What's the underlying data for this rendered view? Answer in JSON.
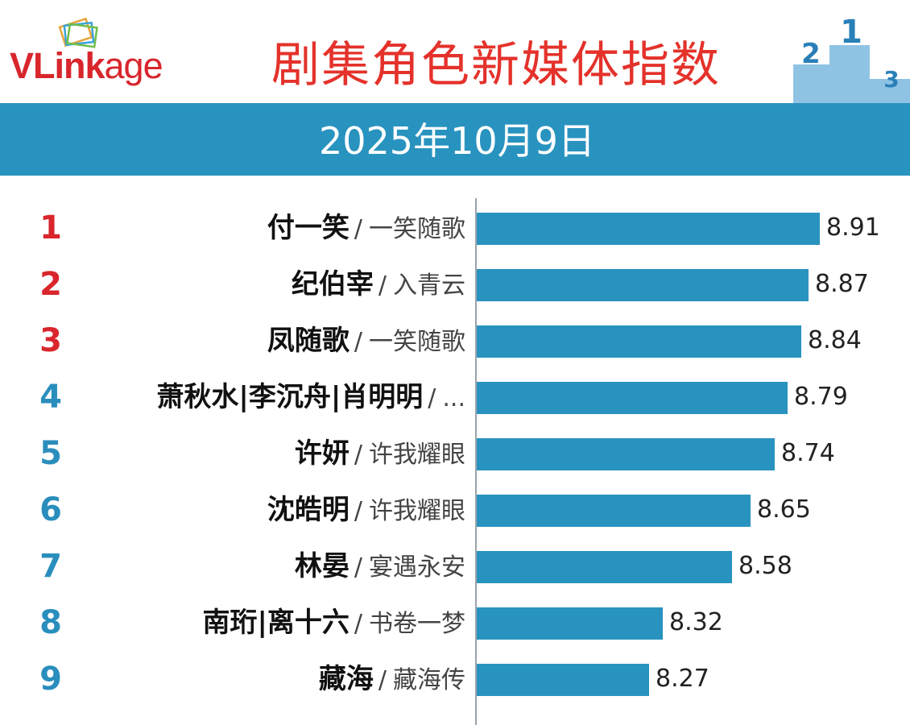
{
  "header": {
    "logo": {
      "v": "V",
      "l": "Link",
      "a": "age"
    },
    "title": "剧集角色新媒体指数",
    "podium_numbers": [
      "2",
      "1",
      "3"
    ]
  },
  "date": "2025年10月9日",
  "colors": {
    "bar": "#2993bf",
    "rank_top": "#d8262c",
    "rank_rest": "#2a8ebd",
    "title": "#e4322b"
  },
  "chart_data": {
    "type": "bar",
    "orientation": "horizontal",
    "title": "剧集角色新媒体指数",
    "subtitle": "2025年10月9日",
    "categories": [
      "付一笑 / 一笑随歌",
      "纪伯宰 / 入青云",
      "凤随歌 / 一笑随歌",
      "萧秋水|李沉舟|肖明明 / ...",
      "许妍 / 许我耀眼",
      "沈皓明 / 许我耀眼",
      "林晏 / 宴遇永安",
      "南珩|离十六 / 书卷一梦",
      "藏海 / 藏海传"
    ],
    "values": [
      8.91,
      8.87,
      8.84,
      8.79,
      8.74,
      8.65,
      8.58,
      8.32,
      8.27
    ],
    "axis_min": 7.62,
    "items": [
      {
        "rank": "1",
        "name": "付一笑",
        "drama": "一笑随歌",
        "value": 8.91,
        "value_label": "8.91"
      },
      {
        "rank": "2",
        "name": "纪伯宰",
        "drama": "入青云",
        "value": 8.87,
        "value_label": "8.87"
      },
      {
        "rank": "3",
        "name": "凤随歌",
        "drama": "一笑随歌",
        "value": 8.84,
        "value_label": "8.84"
      },
      {
        "rank": "4",
        "name": "萧秋水|李沉舟|肖明明",
        "drama": "...",
        "value": 8.79,
        "value_label": "8.79"
      },
      {
        "rank": "5",
        "name": "许妍",
        "drama": "许我耀眼",
        "value": 8.74,
        "value_label": "8.74"
      },
      {
        "rank": "6",
        "name": "沈皓明",
        "drama": "许我耀眼",
        "value": 8.65,
        "value_label": "8.65"
      },
      {
        "rank": "7",
        "name": "林晏",
        "drama": "宴遇永安",
        "value": 8.58,
        "value_label": "8.58"
      },
      {
        "rank": "8",
        "name": "南珩|离十六",
        "drama": "书卷一梦",
        "value": 8.32,
        "value_label": "8.32"
      },
      {
        "rank": "9",
        "name": "藏海",
        "drama": "藏海传",
        "value": 8.27,
        "value_label": "8.27"
      }
    ]
  }
}
